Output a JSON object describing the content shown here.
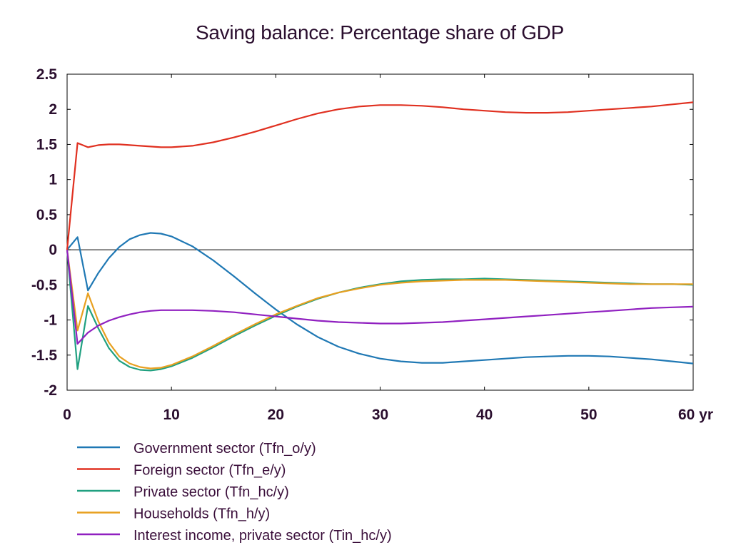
{
  "chart_data": {
    "type": "line",
    "title": "Saving balance: Percentage share of GDP",
    "xlabel": "",
    "ylabel": "",
    "x_unit": "yr",
    "xlim": [
      0,
      60
    ],
    "ylim": [
      -2,
      2.5
    ],
    "x_ticks": [
      0,
      10,
      20,
      30,
      40,
      50,
      60
    ],
    "y_ticks": [
      2.5,
      2,
      1.5,
      1,
      0.5,
      0,
      -0.5,
      -1,
      -1.5,
      -2
    ],
    "x_tick_labels": [
      "0",
      "10",
      "20",
      "30",
      "40",
      "50",
      "60 yr"
    ],
    "y_tick_labels": [
      "2.5",
      "2",
      "1.5",
      "1",
      "0.5",
      "0",
      "-0.5",
      "-1",
      "-1.5",
      "-2"
    ],
    "grid": false,
    "zero_line": true,
    "legend_position": "bottom",
    "series": [
      {
        "name": "Government sector (Tfn_o/y)",
        "color": "#1f78b4",
        "x": [
          0,
          1,
          2,
          3,
          4,
          5,
          6,
          7,
          8,
          9,
          10,
          12,
          14,
          16,
          18,
          20,
          22,
          24,
          26,
          28,
          30,
          32,
          34,
          36,
          38,
          40,
          42,
          44,
          46,
          48,
          50,
          52,
          54,
          56,
          58,
          60
        ],
        "y": [
          0,
          0.18,
          -0.58,
          -0.33,
          -0.12,
          0.04,
          0.15,
          0.21,
          0.24,
          0.23,
          0.19,
          0.05,
          -0.15,
          -0.38,
          -0.62,
          -0.85,
          -1.06,
          -1.24,
          -1.38,
          -1.48,
          -1.55,
          -1.59,
          -1.61,
          -1.61,
          -1.59,
          -1.57,
          -1.55,
          -1.53,
          -1.52,
          -1.51,
          -1.51,
          -1.52,
          -1.54,
          -1.56,
          -1.59,
          -1.62
        ]
      },
      {
        "name": "Foreign sector (Tfn_e/y)",
        "color": "#e03020",
        "x": [
          0,
          1,
          2,
          3,
          4,
          5,
          6,
          7,
          8,
          9,
          10,
          12,
          14,
          16,
          18,
          20,
          22,
          24,
          26,
          28,
          30,
          32,
          34,
          36,
          38,
          40,
          42,
          44,
          46,
          48,
          50,
          52,
          54,
          56,
          58,
          60
        ],
        "y": [
          0,
          1.52,
          1.46,
          1.49,
          1.5,
          1.5,
          1.49,
          1.48,
          1.47,
          1.46,
          1.46,
          1.48,
          1.53,
          1.6,
          1.68,
          1.77,
          1.86,
          1.94,
          2.0,
          2.04,
          2.06,
          2.06,
          2.05,
          2.03,
          2.0,
          1.98,
          1.96,
          1.95,
          1.95,
          1.96,
          1.98,
          2.0,
          2.02,
          2.04,
          2.07,
          2.1
        ]
      },
      {
        "name": "Private sector (Tfn_hc/y)",
        "color": "#20a080",
        "x": [
          0,
          1,
          2,
          3,
          4,
          5,
          6,
          7,
          8,
          9,
          10,
          12,
          14,
          16,
          18,
          20,
          22,
          24,
          26,
          28,
          30,
          32,
          34,
          36,
          38,
          40,
          42,
          44,
          46,
          48,
          50,
          52,
          54,
          56,
          58,
          60
        ],
        "y": [
          0,
          -1.7,
          -0.8,
          -1.12,
          -1.4,
          -1.58,
          -1.67,
          -1.71,
          -1.72,
          -1.7,
          -1.66,
          -1.54,
          -1.39,
          -1.23,
          -1.08,
          -0.94,
          -0.81,
          -0.7,
          -0.61,
          -0.54,
          -0.49,
          -0.45,
          -0.43,
          -0.42,
          -0.42,
          -0.41,
          -0.42,
          -0.43,
          -0.44,
          -0.45,
          -0.46,
          -0.47,
          -0.48,
          -0.49,
          -0.49,
          -0.5
        ]
      },
      {
        "name": "Households (Tfn_h/y)",
        "color": "#e8a020",
        "x": [
          0,
          1,
          2,
          3,
          4,
          5,
          6,
          7,
          8,
          9,
          10,
          12,
          14,
          16,
          18,
          20,
          22,
          24,
          26,
          28,
          30,
          32,
          34,
          36,
          38,
          40,
          42,
          44,
          46,
          48,
          50,
          52,
          54,
          56,
          58,
          60
        ],
        "y": [
          0,
          -1.15,
          -0.62,
          -1.02,
          -1.32,
          -1.52,
          -1.62,
          -1.67,
          -1.69,
          -1.68,
          -1.64,
          -1.52,
          -1.37,
          -1.21,
          -1.06,
          -0.92,
          -0.8,
          -0.69,
          -0.61,
          -0.55,
          -0.5,
          -0.47,
          -0.45,
          -0.44,
          -0.43,
          -0.43,
          -0.43,
          -0.44,
          -0.45,
          -0.46,
          -0.47,
          -0.48,
          -0.49,
          -0.49,
          -0.49,
          -0.49
        ]
      },
      {
        "name": "Interest income, private sector (Tin_hc/y)",
        "color": "#9020c0",
        "x": [
          0,
          1,
          2,
          3,
          4,
          5,
          6,
          7,
          8,
          9,
          10,
          12,
          14,
          16,
          18,
          20,
          22,
          24,
          26,
          28,
          30,
          32,
          34,
          36,
          38,
          40,
          42,
          44,
          46,
          48,
          50,
          52,
          54,
          56,
          58,
          60
        ],
        "y": [
          0,
          -1.34,
          -1.18,
          -1.08,
          -1.01,
          -0.96,
          -0.92,
          -0.89,
          -0.87,
          -0.86,
          -0.86,
          -0.86,
          -0.87,
          -0.89,
          -0.92,
          -0.95,
          -0.98,
          -1.01,
          -1.03,
          -1.04,
          -1.05,
          -1.05,
          -1.04,
          -1.03,
          -1.01,
          -0.99,
          -0.97,
          -0.95,
          -0.93,
          -0.91,
          -0.89,
          -0.87,
          -0.85,
          -0.83,
          -0.82,
          -0.81
        ]
      }
    ]
  }
}
